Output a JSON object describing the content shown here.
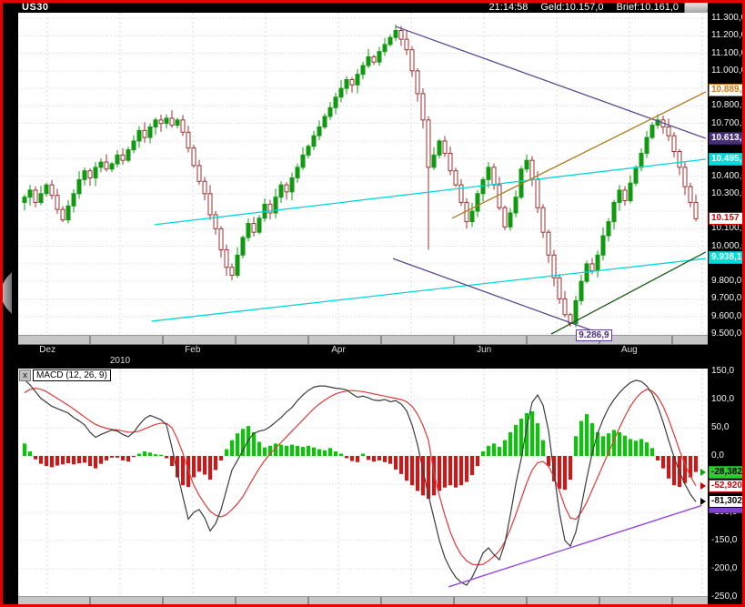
{
  "titlebar": {
    "symbol": "US30",
    "time": "21:14:58",
    "geld_label": "Geld:10.157,0",
    "brief_label": "Brief:10.161,0"
  },
  "macd_panel": {
    "legend": "MACD (12, 26, 9)",
    "close_glyph": "x"
  },
  "colors": {
    "border_red": "#e60000",
    "bg": "#000000",
    "plot_bg": "#ffffff",
    "grid": "#d9d9d9",
    "candle_up": "#129912",
    "candle_down": "#9c3131",
    "cyan_line": "#00d8d8",
    "purple_line": "#5a4890",
    "orange_line": "#b07d20",
    "darkgreen_line": "#1d5c1d",
    "macd_line": "#3c3c3c",
    "signal_line": "#e03838",
    "hist_up": "#00cc00",
    "hist_down": "#dd1111",
    "violet_line": "#9448e0"
  },
  "time_axis": {
    "months": [
      {
        "label": "Dez",
        "i": 4.2
      },
      {
        "label": "Feb",
        "i": 30.8
      },
      {
        "label": "Apr",
        "i": 57.5
      },
      {
        "label": "Jun",
        "i": 84.2
      },
      {
        "label": "Aug",
        "i": 110.8
      }
    ],
    "year": {
      "label": "2010",
      "i": 17.5
    }
  },
  "chart_data": [
    {
      "type": "candlestick",
      "title": "US30 daily",
      "ylim": [
        9500,
        11300
      ],
      "grid_step": 100,
      "y_axis": [
        {
          "t": "11.300,0",
          "v": 11300
        },
        {
          "t": "11.200,0",
          "v": 11200
        },
        {
          "t": "11.100,0",
          "v": 11100
        },
        {
          "t": "11.000,0",
          "v": 11000
        },
        {
          "t": "10.800,0",
          "v": 10800
        },
        {
          "t": "10.700,0",
          "v": 10700
        },
        {
          "t": "10.400,0",
          "v": 10400
        },
        {
          "t": "10.300,0",
          "v": 10300
        },
        {
          "t": "10.100,0",
          "v": 10100
        },
        {
          "t": "10.000,0",
          "v": 10000
        },
        {
          "t": "9.800,0",
          "v": 9800
        },
        {
          "t": "9.700,0",
          "v": 9700
        },
        {
          "t": "9.600,0",
          "v": 9600
        },
        {
          "t": "9.500,0",
          "v": 9500
        }
      ],
      "markers": [
        {
          "t": "10.889,4",
          "v": 10889.4,
          "style": "m-orange"
        },
        {
          "t": "10.613,5",
          "v": 10613.5,
          "style": "m-purple"
        },
        {
          "t": "10.495,1",
          "v": 10495.1,
          "style": "m-cyan"
        },
        {
          "t": "10.157",
          "v": 10157.0,
          "style": "m-red"
        },
        {
          "t": "9.938,1",
          "v": 9938.1,
          "style": "m-cyan"
        }
      ],
      "chart_label": {
        "t": "9.286,9",
        "i": 104.7,
        "v": 9520
      },
      "closes": [
        10280,
        10320,
        10250,
        10300,
        10350,
        10290,
        10210,
        10150,
        10230,
        10300,
        10380,
        10430,
        10390,
        10450,
        10480,
        10440,
        10470,
        10520,
        10490,
        10550,
        10600,
        10660,
        10620,
        10680,
        10720,
        10700,
        10730,
        10690,
        10720,
        10650,
        10560,
        10460,
        10370,
        10300,
        10180,
        10100,
        9980,
        9880,
        9835,
        9950,
        10050,
        10130,
        10080,
        10160,
        10240,
        10190,
        10280,
        10350,
        10310,
        10390,
        10450,
        10520,
        10570,
        10630,
        10680,
        10740,
        10790,
        10850,
        10900,
        10950,
        10920,
        10980,
        11030,
        11080,
        11050,
        11110,
        11150,
        11190,
        11230,
        11180,
        11120,
        11000,
        10870,
        10720,
        10450,
        10520,
        10600,
        10530,
        10430,
        10350,
        10250,
        10140,
        10200,
        10300,
        10380,
        10450,
        10350,
        10220,
        10110,
        10190,
        10280,
        10440,
        10490,
        10380,
        10220,
        10080,
        9950,
        9820,
        9700,
        9610,
        9560,
        9690,
        9800,
        9900,
        9860,
        9950,
        10060,
        10140,
        10250,
        10320,
        10260,
        10360,
        10450,
        10530,
        10620,
        10690,
        10720,
        10680,
        10630,
        10540,
        10450,
        10340,
        10250,
        10157
      ],
      "wick_pattern": [
        15,
        30,
        22,
        45,
        12,
        28,
        38,
        18,
        33,
        25,
        48,
        20
      ],
      "crash": {
        "index": 74,
        "low": 9980
      },
      "trendlines": [
        {
          "name": "cyan-channel-upper",
          "color": "cyan_line",
          "p1": [
            23.8,
            10123
          ],
          "p2": [
            124.8,
            10496
          ]
        },
        {
          "name": "cyan-channel-lower",
          "color": "cyan_line",
          "p1": [
            23.3,
            9573
          ],
          "p2": [
            124.8,
            9930
          ]
        },
        {
          "name": "purple-downtrend-top",
          "color": "purple_line",
          "p1": [
            68.0,
            11253
          ],
          "p2": [
            124.8,
            10615
          ]
        },
        {
          "name": "purple-downtrend-low",
          "color": "purple_line",
          "p1": [
            67.5,
            9930
          ],
          "p2": [
            105.3,
            9505
          ]
        },
        {
          "name": "orange-uptrend",
          "color": "orange_line",
          "p1": [
            78.3,
            10159
          ],
          "p2": [
            124.8,
            10880
          ]
        },
        {
          "name": "darkgreen-uptrend",
          "color": "darkgreen_line",
          "p1": [
            96.5,
            9500
          ],
          "p2": [
            124.8,
            9967
          ]
        }
      ]
    },
    {
      "type": "macd",
      "title": "MACD (12, 26, 9)",
      "ylim": [
        -248,
        155
      ],
      "grid_step": 50,
      "y_axis": [
        {
          "t": "150,0",
          "v": 150
        },
        {
          "t": "100,0",
          "v": 100
        },
        {
          "t": "50,0",
          "v": 50
        },
        {
          "t": "0,0",
          "v": 0
        },
        {
          "t": "-100,0",
          "v": -100
        },
        {
          "t": "-150,0",
          "v": -150
        },
        {
          "t": "-200,0",
          "v": -200
        },
        {
          "t": "-250,0",
          "v": -250
        }
      ],
      "markers": [
        {
          "t": "-28,3821",
          "v": -28.3821,
          "style": "m-green",
          "arrow": "#00aa00"
        },
        {
          "t": "-52,9203",
          "v": -52.9203,
          "style": "m-red",
          "arrow": "#cc0000"
        },
        {
          "t": "-81,3024",
          "v": -81.3024,
          "style": "m-black",
          "arrow": "#000000"
        },
        {
          "t": "",
          "v": -91.0,
          "style": "m-violet",
          "arrow": ""
        }
      ],
      "macd": [
        135,
        126,
        114,
        102,
        95,
        88,
        84,
        80,
        76,
        68,
        62,
        55,
        42,
        33,
        38,
        42,
        46,
        44,
        38,
        34,
        42,
        55,
        66,
        72,
        68,
        64,
        55,
        15,
        -30,
        -72,
        -112,
        -100,
        -95,
        -110,
        -133,
        -120,
        -95,
        -60,
        -25,
        -8,
        10,
        28,
        40,
        44,
        46,
        52,
        60,
        68,
        78,
        86,
        98,
        108,
        116,
        122,
        124,
        124,
        122,
        120,
        119,
        117,
        110,
        104,
        106,
        103,
        99,
        98,
        100,
        96,
        98,
        92,
        80,
        55,
        20,
        -25,
        -70,
        -110,
        -150,
        -180,
        -200,
        -215,
        -224,
        -229,
        -215,
        -195,
        -172,
        -163,
        -175,
        -184,
        -155,
        -105,
        -50,
        -5,
        50,
        95,
        108,
        90,
        45,
        -30,
        -100,
        -150,
        -160,
        -135,
        -90,
        -40,
        5,
        40,
        65,
        85,
        100,
        112,
        122,
        130,
        134,
        132,
        124,
        110,
        88,
        60,
        28,
        -2,
        -28,
        -50,
        -68,
        -81.3
      ],
      "signal": [
        112,
        118,
        120,
        118,
        114,
        108,
        102,
        96,
        90,
        83,
        76,
        69,
        62,
        56,
        52,
        49,
        47,
        46,
        44,
        42,
        42,
        44,
        48,
        52,
        56,
        58,
        58,
        50,
        30,
        5,
        -25,
        -52,
        -70,
        -85,
        -98,
        -105,
        -108,
        -104,
        -95,
        -85,
        -72,
        -55,
        -38,
        -22,
        -8,
        4,
        14,
        24,
        34,
        44,
        54,
        64,
        74,
        84,
        92,
        99,
        105,
        110,
        113,
        115,
        116,
        115,
        114,
        112,
        110,
        108,
        106,
        104,
        102,
        100,
        96,
        88,
        74,
        54,
        28,
        -30,
        -70,
        -105,
        -135,
        -158,
        -175,
        -186,
        -192,
        -193,
        -192,
        -186,
        -178,
        -168,
        -152,
        -130,
        -104,
        -76,
        -48,
        -25,
        -12,
        -10,
        -18,
        -38,
        -62,
        -90,
        -110,
        -112,
        -100,
        -82,
        -60,
        -38,
        -16,
        6,
        28,
        50,
        70,
        88,
        102,
        112,
        118,
        115,
        105,
        88,
        65,
        38,
        10,
        -15,
        -36,
        -53
      ],
      "histogram": [
        22,
        8,
        -6,
        -14,
        -18,
        -20,
        -17,
        -15,
        -13,
        -15,
        -13,
        -12,
        -18,
        -22,
        -14,
        -8,
        -3,
        -3,
        -8,
        -10,
        -2,
        4,
        8,
        6,
        3,
        2,
        -4,
        -18,
        -38,
        -52,
        -55,
        -38,
        -28,
        -33,
        -42,
        -25,
        -8,
        12,
        28,
        40,
        48,
        53,
        42,
        25,
        15,
        18,
        22,
        20,
        18,
        20,
        18,
        16,
        18,
        15,
        12,
        10,
        14,
        8,
        4,
        -4,
        -9,
        -11,
        4,
        -7,
        -10,
        -8,
        -11,
        -14,
        -24,
        -32,
        -44,
        -52,
        -62,
        -70,
        -76,
        -70,
        -62,
        -56,
        -52,
        -56,
        -52,
        -46,
        -34,
        -18,
        8,
        18,
        22,
        16,
        28,
        42,
        55,
        66,
        76,
        79,
        58,
        28,
        -18,
        -45,
        -58,
        -60,
        -42,
        35,
        62,
        74,
        58,
        42,
        35,
        40,
        46,
        42,
        36,
        30,
        27,
        30,
        24,
        14,
        -8,
        -22,
        -40,
        -52,
        -55,
        -48,
        -38,
        -28.38
      ],
      "trendlines": [
        {
          "name": "violet-uptrend",
          "color": "violet_line",
          "p1": [
            77.7,
            -232
          ],
          "p2": [
            124.0,
            -88
          ]
        }
      ]
    }
  ]
}
